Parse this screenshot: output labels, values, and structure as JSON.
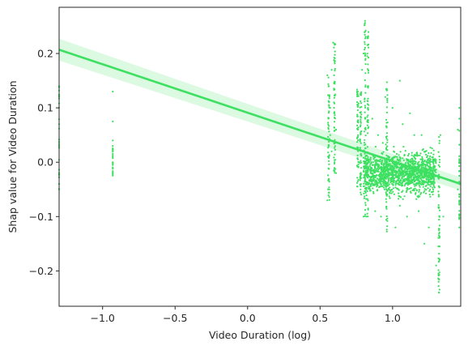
{
  "chart_data": {
    "type": "scatter",
    "title": "",
    "xlabel": "Video Duration (log)",
    "ylabel": "Shap value for Video Duration",
    "xlim": [
      -1.3,
      1.47
    ],
    "ylim": [
      -0.265,
      0.285
    ],
    "xticks": [
      -1.0,
      -0.5,
      0.0,
      0.5,
      1.0
    ],
    "xtick_labels": [
      "−1.0",
      "−0.5",
      "0.0",
      "0.5",
      "1.0"
    ],
    "yticks": [
      -0.2,
      -0.1,
      0.0,
      0.1,
      0.2
    ],
    "ytick_labels": [
      "−0.2",
      "−0.1",
      "0.0",
      "0.1",
      "0.2"
    ],
    "grid": false,
    "series": [
      {
        "type": "scatter",
        "color": "#3de060",
        "x": [
          -1.3,
          -1.3,
          -1.3,
          -1.3,
          -1.3,
          -0.93,
          -0.93,
          -0.93,
          -0.93,
          -0.93,
          -0.93,
          -0.93,
          -0.93,
          -0.93,
          0.55,
          0.55,
          0.56,
          0.57,
          0.57,
          0.58,
          0.58,
          0.59,
          0.6,
          0.6,
          0.61,
          0.61,
          0.76,
          0.77,
          0.78,
          0.79,
          0.8,
          0.8,
          0.81,
          0.81,
          0.82,
          0.82,
          0.83,
          0.83,
          0.84,
          0.85,
          0.86,
          0.88,
          0.9,
          0.92,
          0.95,
          0.97,
          1.0,
          1.02,
          1.05,
          1.05,
          1.07,
          1.1,
          1.12,
          1.15,
          1.18,
          1.2,
          1.22,
          1.25,
          1.28,
          1.3,
          1.32,
          1.33,
          1.35,
          1.45,
          1.45,
          1.46,
          1.46
        ],
        "y": [
          0.14,
          0.07,
          0.03,
          -0.02,
          -0.05,
          0.13,
          0.075,
          0.04,
          0.02,
          0.01,
          0.0,
          -0.01,
          -0.02,
          0.03,
          0.16,
          -0.07,
          0.14,
          0.1,
          0.05,
          0.17,
          0.02,
          0.22,
          0.09,
          0.0,
          0.06,
          -0.02,
          0.13,
          0.0,
          -0.05,
          0.17,
          0.2,
          -0.1,
          0.26,
          0.24,
          -0.05,
          -0.1,
          0.18,
          0.1,
          0.0,
          -0.02,
          0.08,
          -0.09,
          0.05,
          -0.1,
          0.12,
          -0.05,
          0.1,
          -0.12,
          0.15,
          -0.08,
          0.07,
          -0.1,
          0.09,
          0.05,
          -0.09,
          0.05,
          -0.15,
          -0.12,
          -0.05,
          -0.19,
          -0.24,
          0.05,
          -0.1,
          0.06,
          -0.05,
          0.1,
          -0.12
        ]
      }
    ],
    "regression": {
      "x": [
        -1.3,
        1.47
      ],
      "y": [
        0.207,
        -0.04
      ],
      "ci_half_width_at_ends": 0.02,
      "color": "#3de060"
    }
  }
}
